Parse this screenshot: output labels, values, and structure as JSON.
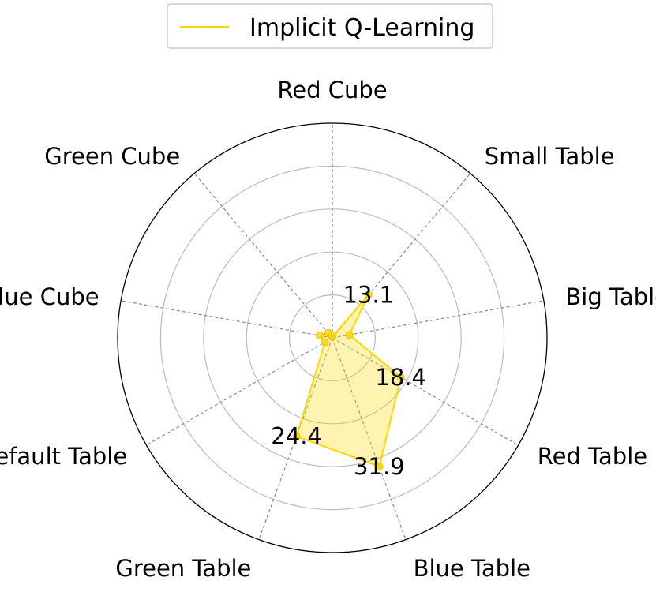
{
  "chart_data": {
    "type": "radar",
    "categories": [
      "Red Cube",
      "Small Table",
      "Big Table",
      "Red Table",
      "Blue Table",
      "Green Table",
      "Default Table",
      "Blue Cube",
      "Green Cube"
    ],
    "series": [
      {
        "name": "Implicit Q-Learning",
        "values": [
          0.3,
          13.1,
          4.0,
          18.4,
          31.9,
          24.4,
          2.0,
          3.0,
          1.5
        ],
        "color": "#FFD700"
      }
    ],
    "value_labels": [
      "",
      "13.1",
      "",
      "18.4",
      "31.9",
      "24.4",
      "",
      "",
      ""
    ],
    "rlim": [
      0,
      50
    ],
    "grid": true,
    "legend_position": "top-center"
  }
}
